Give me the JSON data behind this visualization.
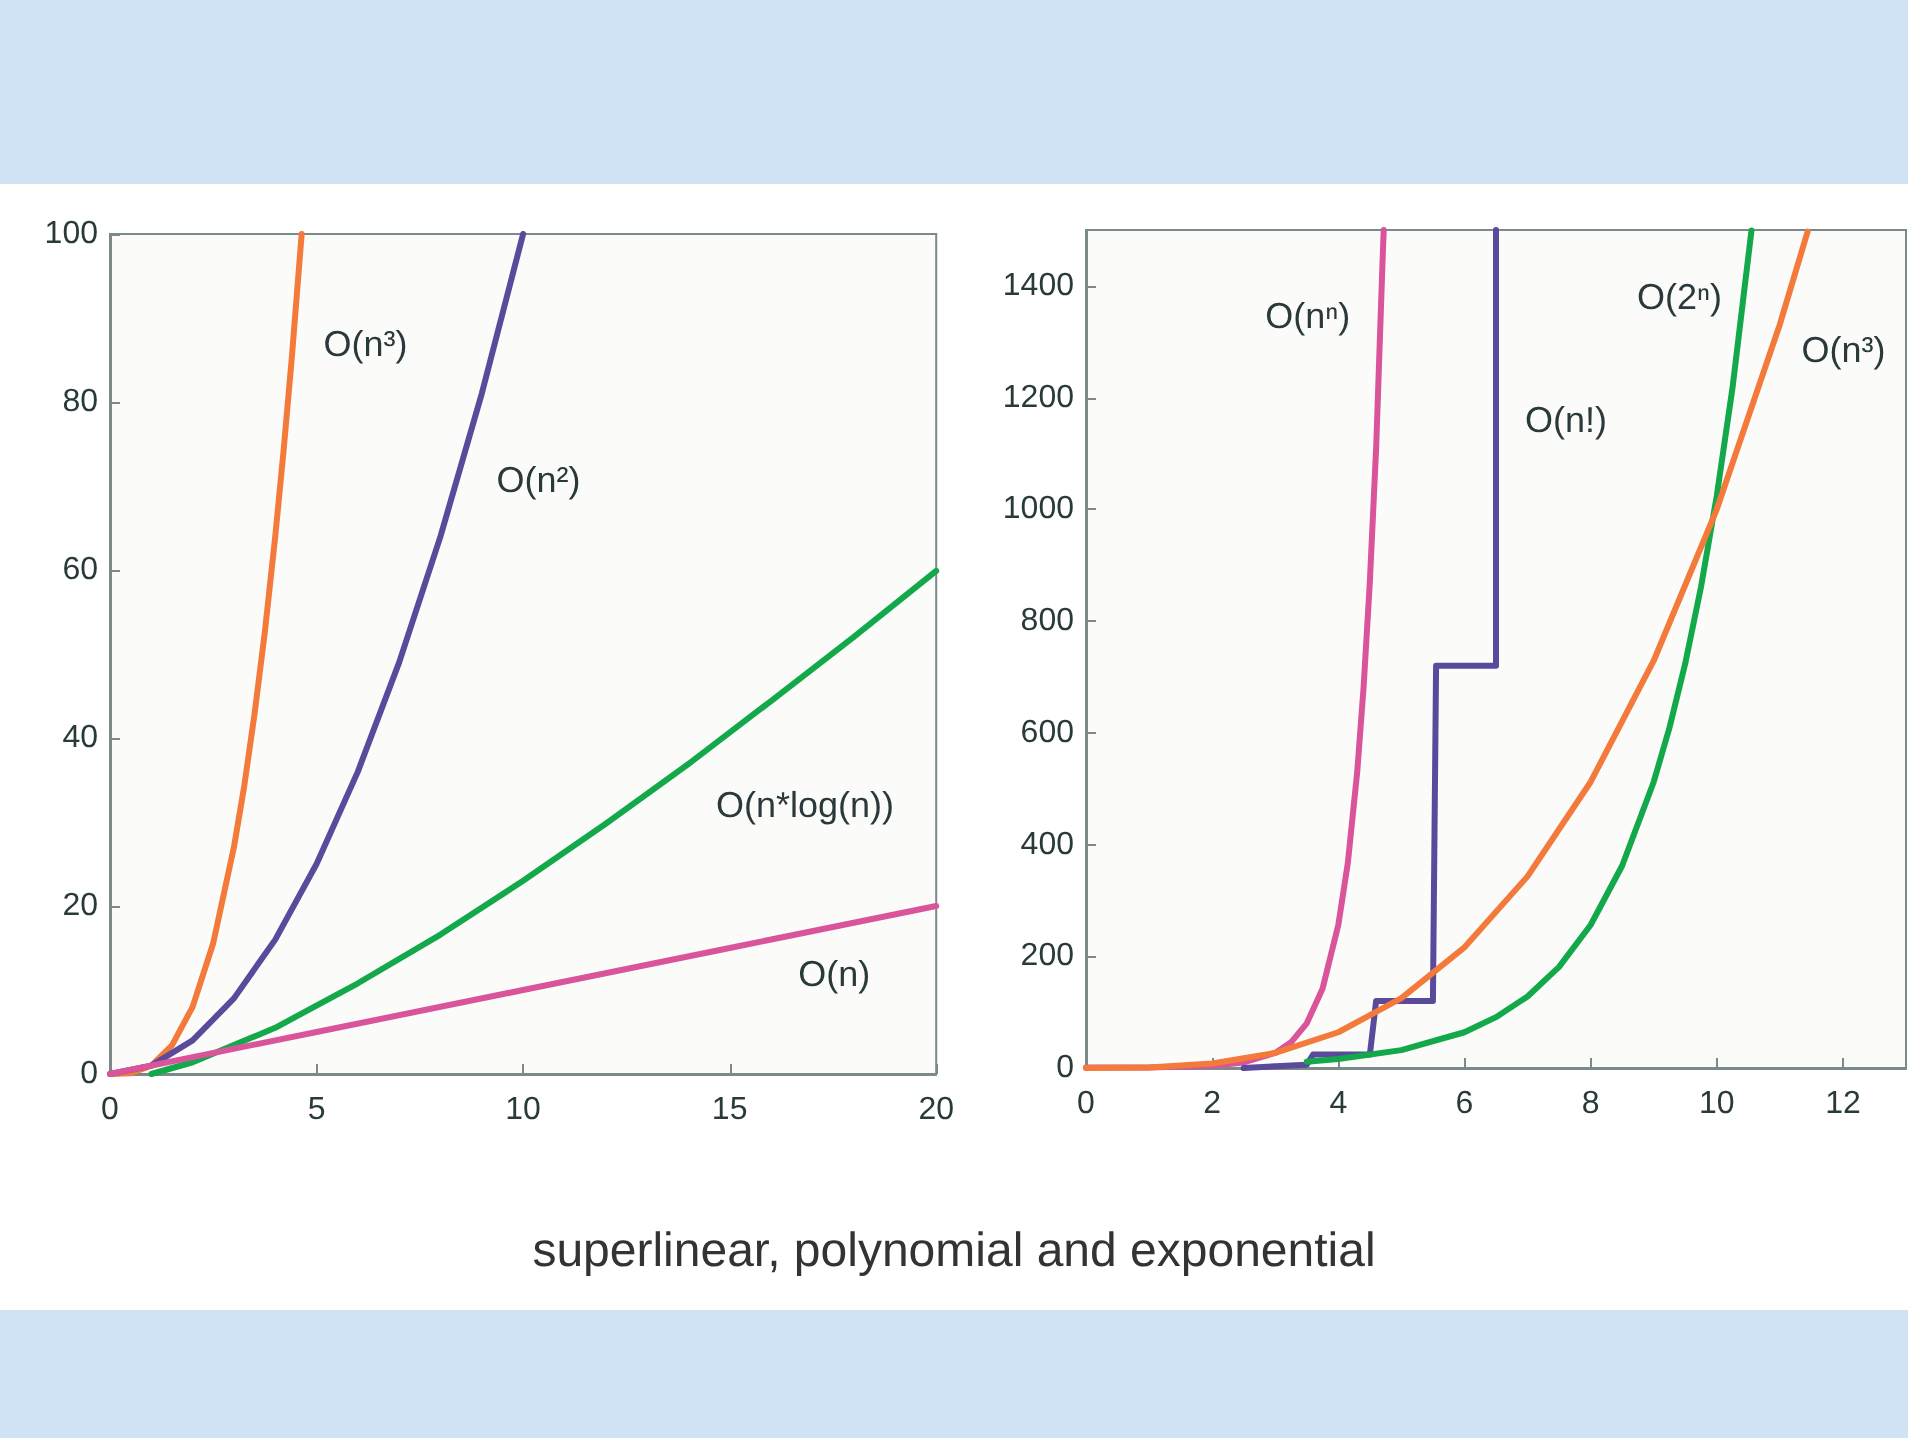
{
  "chart_data": [
    {
      "type": "line",
      "xlim": [
        0,
        20
      ],
      "xticks": [
        0,
        5,
        10,
        15,
        20
      ],
      "ylim": [
        0,
        100
      ],
      "yticks": [
        0,
        20,
        40,
        60,
        80,
        100
      ],
      "series": [
        {
          "name": "O(n³)",
          "color": "#f47a3c",
          "x": [
            0,
            0.5,
            1,
            1.5,
            2,
            2.5,
            3,
            3.25,
            3.5,
            3.75,
            4,
            4.2,
            4.4,
            4.64
          ],
          "values": [
            0,
            0.1,
            1,
            3.4,
            8,
            15.6,
            27,
            34.3,
            42.9,
            52.7,
            64,
            74.1,
            85.2,
            100
          ]
        },
        {
          "name": "O(n²)",
          "color": "#5a4a9c",
          "x": [
            0,
            1,
            2,
            3,
            4,
            5,
            6,
            7,
            8,
            9,
            10
          ],
          "values": [
            0,
            1,
            4,
            9,
            16,
            25,
            36,
            49,
            64,
            81,
            100
          ]
        },
        {
          "name": "O(n*log(n))",
          "color": "#13a84a",
          "x": [
            1,
            2,
            4,
            6,
            8,
            10,
            12,
            14,
            16,
            18,
            20
          ],
          "values": [
            0,
            1.4,
            5.5,
            10.8,
            16.6,
            23,
            29.8,
            36.9,
            44.4,
            52,
            59.9
          ]
        },
        {
          "name": "O(n)",
          "color": "#d9549a",
          "x": [
            0,
            5,
            10,
            15,
            20
          ],
          "values": [
            0,
            5,
            10,
            15,
            20
          ]
        }
      ],
      "annotations": [
        "superlinear, polynomial and exponential"
      ]
    },
    {
      "type": "line",
      "xlim": [
        0,
        13
      ],
      "xticks": [
        0,
        2,
        4,
        6,
        8,
        10,
        12
      ],
      "ylim": [
        0,
        1500
      ],
      "yticks": [
        0,
        200,
        400,
        600,
        800,
        1000,
        1200,
        1400
      ],
      "series": [
        {
          "name": "O(nⁿ)",
          "color": "#d9549a",
          "x": [
            0,
            1,
            2,
            2.5,
            3,
            3.25,
            3.5,
            3.75,
            4,
            4.15,
            4.3,
            4.4,
            4.5,
            4.6,
            4.7,
            4.72
          ],
          "values": [
            1,
            1,
            4,
            10,
            27,
            46,
            80,
            142,
            256,
            366,
            530,
            680,
            870,
            1110,
            1440,
            1500
          ]
        },
        {
          "name": "O(n!)",
          "color": "#5a4a9c",
          "x": [
            2.5,
            3.5,
            3.6,
            4.5,
            4.6,
            5.5,
            5.55,
            6.5,
            6.5
          ],
          "values": [
            0,
            6,
            24,
            24,
            120,
            120,
            720,
            720,
            1500
          ]
        },
        {
          "name": "O(2ⁿ)",
          "color": "#13a84a",
          "x": [
            3.5,
            4,
            5,
            6,
            6.5,
            7,
            7.5,
            8,
            8.5,
            9,
            9.25,
            9.5,
            9.75,
            10,
            10.25,
            10.55
          ],
          "values": [
            11,
            16,
            32,
            64,
            91,
            128,
            181,
            256,
            362,
            512,
            609,
            724,
            861,
            1024,
            1218,
            1499
          ]
        },
        {
          "name": "O(n³)",
          "color": "#f47a3c",
          "x": [
            0,
            1,
            2,
            3,
            4,
            5,
            6,
            7,
            8,
            9,
            10,
            11,
            11.44
          ],
          "values": [
            0,
            1,
            8,
            27,
            64,
            125,
            216,
            343,
            512,
            729,
            1000,
            1331,
            1497
          ]
        }
      ]
    }
  ]
}
